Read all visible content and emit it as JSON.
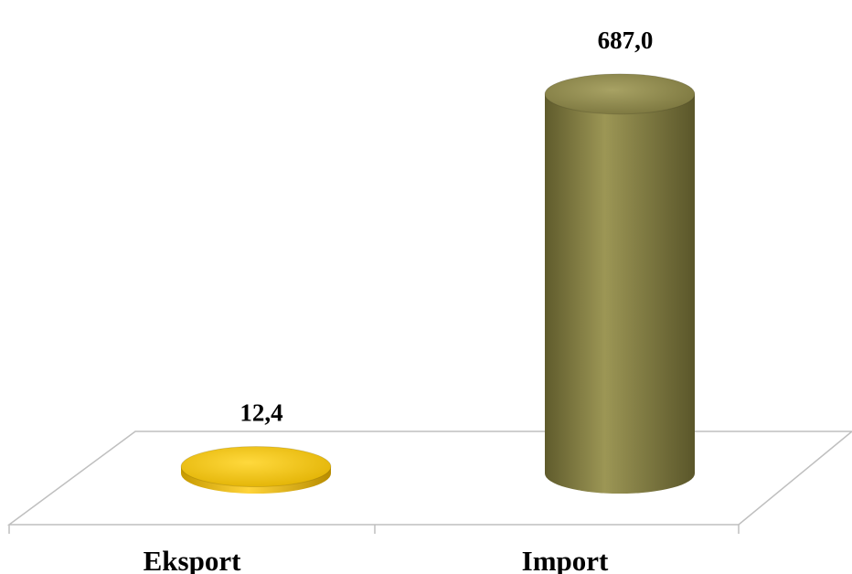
{
  "chart_data": {
    "type": "bar",
    "style": "3d-cylinder",
    "categories": [
      "Eksport",
      "Import"
    ],
    "values": [
      12.4,
      687.0
    ],
    "value_labels": [
      "12,4",
      "687,0"
    ],
    "colors": [
      "#f2c200",
      "#8a8448"
    ],
    "title": "",
    "xlabel": "",
    "ylabel": "",
    "ylim": [
      0,
      700
    ],
    "grid": false,
    "legend": "none"
  }
}
